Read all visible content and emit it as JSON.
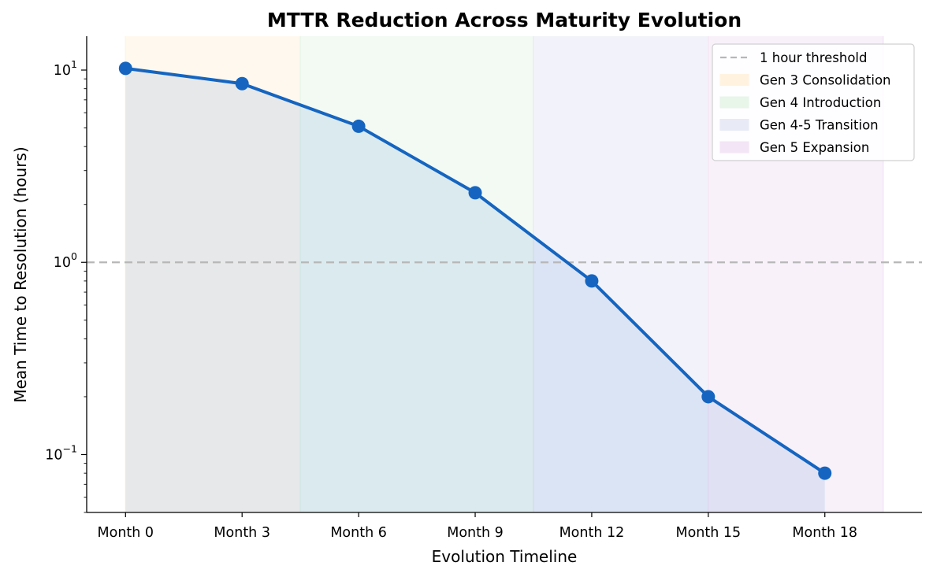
{
  "chart_data": {
    "type": "line",
    "title": "MTTR Reduction Across Maturity Evolution",
    "xlabel": "Evolution Timeline",
    "ylabel": "Mean Time to Resolution (hours)",
    "y_scale": "log",
    "ylim": [
      0.05,
      15
    ],
    "y_ticks": [
      {
        "value": 10,
        "base": "10",
        "exp": "1"
      },
      {
        "value": 1,
        "base": "10",
        "exp": "0"
      },
      {
        "value": 0.1,
        "base": "10",
        "exp": "−1"
      }
    ],
    "categories": [
      "Month 0",
      "Month 3",
      "Month 6",
      "Month 9",
      "Month 12",
      "Month 15",
      "Month 18"
    ],
    "x_values": [
      0,
      3,
      6,
      9,
      12,
      15,
      18
    ],
    "xlim": [
      -1,
      20.5
    ],
    "series": [
      {
        "name": "",
        "color": "#1565c0",
        "values": [
          10.2,
          8.5,
          5.1,
          2.3,
          0.8,
          0.2,
          0.08
        ]
      }
    ],
    "threshold": {
      "label": "1 hour threshold",
      "value": 1,
      "color": "#b7b7b7",
      "style": "dashed"
    },
    "phases": [
      {
        "label": "Gen 3 Consolidation",
        "start": 0,
        "end": 4.5,
        "color": "#fff3e0"
      },
      {
        "label": "Gen 4 Introduction",
        "start": 4.5,
        "end": 10.5,
        "color": "#e8f5e9"
      },
      {
        "label": "Gen 4-5 Transition",
        "start": 10.5,
        "end": 15,
        "color": "#e8eaf6"
      },
      {
        "label": "Gen 5 Expansion",
        "start": 15,
        "end": 19.5,
        "color": "#f3e5f5"
      }
    ],
    "grid": false,
    "legend_position": "top-right"
  }
}
